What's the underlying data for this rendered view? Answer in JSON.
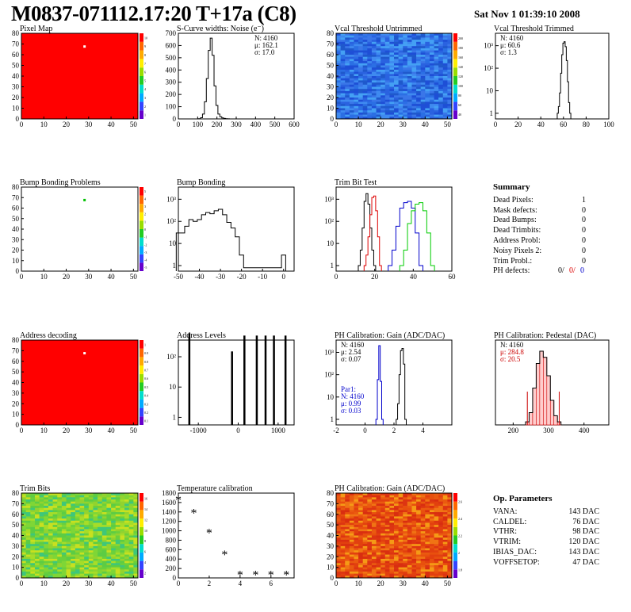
{
  "header": {
    "title": "M0837-071112.17:20 T+17a (C8)",
    "date": "Sat Nov  1 01:39:10 2008"
  },
  "chart_data": [
    {
      "id": "pixel-map",
      "type": "heatmap",
      "title": "Pixel Map",
      "xlim": [
        0,
        52
      ],
      "ylim": [
        0,
        80
      ],
      "xticks": [
        0,
        10,
        20,
        30,
        40,
        50
      ],
      "yticks": [
        0,
        10,
        20,
        30,
        40,
        50,
        60,
        70,
        80
      ],
      "z_ticks": [
        "1",
        "2",
        "3",
        "4",
        "5",
        "6",
        "7",
        "8",
        "9",
        "10"
      ],
      "fill": "#ff0000",
      "special_pixels": [
        {
          "x": 28,
          "y": 68,
          "color": "#ffffff"
        }
      ]
    },
    {
      "id": "scurve-noise",
      "type": "line",
      "title": "S-Curve widths: Noise (e⁻)",
      "xlim": [
        0,
        600
      ],
      "ylim": [
        0,
        700
      ],
      "xticks": [
        0,
        100,
        200,
        300,
        400,
        500,
        600
      ],
      "yticks": [
        0,
        100,
        200,
        300,
        400,
        500,
        600,
        700
      ],
      "stats": [
        "N: 4160",
        "μ: 162.1",
        "σ: 17.0"
      ],
      "x": [
        100,
        110,
        120,
        130,
        140,
        150,
        160,
        170,
        180,
        190,
        200,
        210,
        220,
        230,
        240,
        250,
        260,
        270,
        280
      ],
      "y": [
        0,
        2,
        10,
        40,
        140,
        330,
        560,
        660,
        520,
        270,
        110,
        40,
        18,
        8,
        4,
        2,
        1,
        0,
        0
      ]
    },
    {
      "id": "vcal-untrimmed",
      "type": "heatmap",
      "title": "Vcal Threshold Untrimmed",
      "xlim": [
        0,
        52
      ],
      "ylim": [
        0,
        80
      ],
      "xticks": [
        0,
        10,
        20,
        30,
        40,
        50
      ],
      "yticks": [
        0,
        10,
        20,
        30,
        40,
        50,
        60,
        70,
        80
      ],
      "z_ticks": [
        "40",
        "60",
        "80",
        "100",
        "120",
        "140",
        "160",
        "180",
        "200"
      ],
      "fill": "#2a5bd7"
    },
    {
      "id": "vcal-trimmed",
      "type": "line",
      "title": "Vcal Threshold Trimmed",
      "log": true,
      "xlim": [
        0,
        100
      ],
      "xticks": [
        0,
        20,
        40,
        60,
        80,
        100
      ],
      "yticks": [
        "1",
        "10",
        "10²",
        "10³"
      ],
      "stats": [
        "N: 4160",
        "μ: 60.6",
        "σ: 1.3"
      ],
      "x": [
        55,
        56,
        57,
        58,
        59,
        60,
        61,
        62,
        63,
        64,
        65,
        66
      ],
      "y": [
        1,
        2,
        8,
        60,
        400,
        1300,
        1500,
        900,
        220,
        25,
        3,
        1
      ]
    },
    {
      "id": "bump-bonding-problems",
      "type": "heatmap",
      "title": "Bump Bonding Problems",
      "xlim": [
        0,
        52
      ],
      "ylim": [
        0,
        80
      ],
      "xticks": [
        0,
        10,
        20,
        30,
        40,
        50
      ],
      "yticks": [
        0,
        10,
        20,
        30,
        40,
        50,
        60,
        70,
        80
      ],
      "z_ticks": [
        "-5",
        "-4",
        "-3",
        "-2",
        "-1",
        "0",
        "1",
        "2",
        "3",
        "4",
        "5"
      ],
      "fill": "#ffffff",
      "special_pixels": [
        {
          "x": 28,
          "y": 68,
          "color": "#00c000"
        }
      ]
    },
    {
      "id": "bump-bonding",
      "type": "line",
      "title": "Bump Bonding",
      "log": true,
      "xlim": [
        -50,
        5
      ],
      "xticks": [
        -50,
        -40,
        -30,
        -20,
        -10,
        0
      ],
      "yticks": [
        "1",
        "10",
        "10²",
        "10³"
      ],
      "x": [
        -50,
        -48,
        -46,
        -44,
        -42,
        -40,
        -38,
        -36,
        -34,
        -32,
        -30,
        -28,
        -26,
        -24,
        -22,
        -20,
        -18,
        -2,
        0
      ],
      "y": [
        30,
        30,
        60,
        120,
        100,
        120,
        200,
        250,
        220,
        300,
        350,
        200,
        90,
        50,
        20,
        3,
        0.8,
        0.8,
        3
      ]
    },
    {
      "id": "trim-bit-test",
      "type": "line",
      "title": "Trim Bit Test",
      "log": true,
      "xlim": [
        0,
        60
      ],
      "xticks": [
        0,
        20,
        40,
        60
      ],
      "yticks": [
        "1",
        "10",
        "10²",
        "10³"
      ],
      "series": [
        {
          "color": "#000000",
          "x": [
            12,
            13,
            14,
            15,
            16,
            17,
            18,
            19,
            20
          ],
          "y": [
            1,
            5,
            50,
            800,
            1800,
            600,
            50,
            5,
            1
          ]
        },
        {
          "color": "#dd0000",
          "x": [
            15,
            16,
            17,
            18,
            19,
            20,
            21,
            22,
            23
          ],
          "y": [
            1,
            3,
            20,
            200,
            1200,
            1400,
            300,
            20,
            1
          ]
        },
        {
          "color": "#0000cc",
          "x": [
            28,
            30,
            32,
            34,
            36,
            38,
            40,
            42,
            44
          ],
          "y": [
            1,
            5,
            60,
            400,
            700,
            800,
            400,
            30,
            1
          ]
        },
        {
          "color": "#00cc00",
          "x": [
            34,
            36,
            38,
            40,
            42,
            44,
            46,
            48,
            50
          ],
          "y": [
            1,
            5,
            80,
            300,
            600,
            700,
            300,
            30,
            1
          ]
        }
      ]
    },
    {
      "id": "address-decoding",
      "type": "heatmap",
      "title": "Address decoding",
      "xlim": [
        0,
        52
      ],
      "ylim": [
        0,
        80
      ],
      "xticks": [
        0,
        10,
        20,
        30,
        40,
        50
      ],
      "yticks": [
        0,
        10,
        20,
        30,
        40,
        50,
        60,
        70,
        80
      ],
      "z_ticks": [
        "0.1",
        "0.2",
        "0.3",
        "0.4",
        "0.5",
        "0.6",
        "0.7",
        "0.8",
        "0.9",
        "1"
      ],
      "fill": "#ff0000",
      "special_pixels": [
        {
          "x": 28,
          "y": 68,
          "color": "#ffffff"
        }
      ]
    },
    {
      "id": "address-levels",
      "type": "bar",
      "title": "Address Levels",
      "log": true,
      "xlim": [
        -1500,
        1400
      ],
      "xticks": [
        -1000,
        0,
        1000
      ],
      "yticks": [
        "1",
        "10",
        "10²"
      ],
      "x": [
        -1230,
        -160,
        150,
        460,
        680,
        890,
        1180
      ],
      "y": [
        600,
        150,
        500,
        500,
        500,
        500,
        500
      ]
    },
    {
      "id": "ph-gain",
      "type": "line",
      "title": "PH Calibration: Gain (ADC/DAC)",
      "log": true,
      "xlim": [
        -2,
        6
      ],
      "xticks": [
        -2,
        0,
        2,
        4
      ],
      "yticks": [
        "1",
        "10",
        "10²",
        "10³"
      ],
      "stats": [
        "N: 4160",
        "μ: 2.54",
        "σ: 0.07"
      ],
      "stats2": [
        "Par1:",
        "N: 4160",
        "μ: 0.99",
        "σ: 0.03"
      ],
      "series": [
        {
          "color": "#000000",
          "x": [
            2.2,
            2.3,
            2.4,
            2.5,
            2.6,
            2.7,
            2.8
          ],
          "y": [
            1,
            5,
            100,
            1200,
            1500,
            300,
            1
          ]
        },
        {
          "color": "#0000cc",
          "x": [
            0.8,
            0.9,
            1.0,
            1.1,
            1.2
          ],
          "y": [
            1,
            60,
            2000,
            50,
            1
          ]
        }
      ]
    },
    {
      "id": "ph-pedestal",
      "type": "bar",
      "title": "PH Calibration: Pedestal (DAC)",
      "xlim": [
        150,
        470
      ],
      "xticks": [
        200,
        300,
        400
      ],
      "stats": [
        "N: 4160",
        "μ: 284.8",
        "σ: 20.5"
      ],
      "x": [
        240,
        250,
        260,
        270,
        280,
        290,
        300,
        310,
        320,
        330
      ],
      "y": [
        5,
        20,
        60,
        100,
        120,
        110,
        80,
        40,
        15,
        5
      ]
    },
    {
      "id": "trim-bits",
      "type": "heatmap",
      "title": "Trim Bits",
      "xlim": [
        0,
        52
      ],
      "ylim": [
        0,
        80
      ],
      "xticks": [
        0,
        10,
        20,
        30,
        40,
        50
      ],
      "yticks": [
        0,
        10,
        20,
        30,
        40,
        50,
        60,
        70,
        80
      ],
      "z_ticks": [
        "2",
        "4",
        "6",
        "8",
        "10",
        "12",
        "14",
        "16"
      ],
      "fill": "#7bd43a"
    },
    {
      "id": "temperature-calibration",
      "type": "scatter",
      "title": "Temperature calibration",
      "xlim": [
        0,
        7.5
      ],
      "ylim": [
        0,
        1800
      ],
      "xticks": [
        0,
        2,
        4,
        6
      ],
      "yticks": [
        0,
        200,
        400,
        600,
        800,
        1000,
        1200,
        1400,
        1600,
        1800
      ],
      "x": [
        0,
        1,
        2,
        3,
        4,
        5,
        6,
        7
      ],
      "y": [
        1650,
        1370,
        950,
        490,
        60,
        60,
        60,
        60
      ]
    },
    {
      "id": "ph-gain-map",
      "type": "heatmap",
      "title": "PH Calibration: Gain (ADC/DAC)",
      "xlim": [
        0,
        52
      ],
      "ylim": [
        0,
        80
      ],
      "xticks": [
        0,
        10,
        20,
        30,
        40,
        50
      ],
      "yticks": [
        0,
        10,
        20,
        30,
        40,
        50,
        60,
        70,
        80
      ],
      "z_ticks": [
        "1.8",
        "2",
        "2.2",
        "2.4",
        "2.6"
      ],
      "fill": "#dd4411"
    }
  ],
  "summary": {
    "title": "Summary",
    "rows": [
      {
        "label": "Dead Pixels:",
        "value": "1"
      },
      {
        "label": "Mask defects:",
        "value": "0"
      },
      {
        "label": "Dead Bumps:",
        "value": "0"
      },
      {
        "label": "Dead Trimbits:",
        "value": "0"
      },
      {
        "label": "Address Probl:",
        "value": "0"
      },
      {
        "label": "Noisy Pixels 2:",
        "value": "0"
      },
      {
        "label": "Trim Probl.:",
        "value": "0"
      }
    ],
    "ph_label": "PH defects:",
    "ph_values": [
      "0/",
      "0/",
      "0"
    ],
    "ph_colors": [
      "#000000",
      "#dd0000",
      "#0000cc"
    ]
  },
  "op_params": {
    "title": "Op. Parameters",
    "rows": [
      {
        "label": "VANA:",
        "value": "143 DAC"
      },
      {
        "label": "CALDEL:",
        "value": "76 DAC"
      },
      {
        "label": "VTHR:",
        "value": "98 DAC"
      },
      {
        "label": "VTRIM:",
        "value": "120 DAC"
      },
      {
        "label": "IBIAS_DAC:",
        "value": "143 DAC"
      },
      {
        "label": "VOFFSETOP:",
        "value": "47 DAC"
      }
    ]
  }
}
